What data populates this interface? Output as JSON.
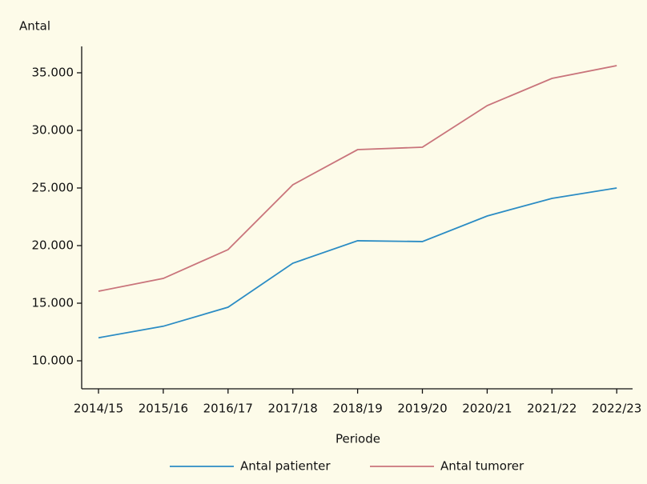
{
  "chart_data": {
    "type": "line",
    "y_label": "Antal",
    "x_label": "Periode",
    "categories": [
      "2014/15",
      "2015/16",
      "2016/17",
      "2017/18",
      "2018/19",
      "2019/20",
      "2020/21",
      "2021/22",
      "2022/23"
    ],
    "series": [
      {
        "name": "Antal patienter",
        "color": "#2b8cc4",
        "values": [
          12000,
          13000,
          14650,
          18470,
          20420,
          20350,
          22570,
          24100,
          25000
        ]
      },
      {
        "name": "Antal tumorer",
        "color": "#c9747b",
        "values": [
          16040,
          17150,
          19650,
          25280,
          28330,
          28540,
          32150,
          34510,
          35620
        ]
      }
    ],
    "ylim": [
      7570,
      37290
    ],
    "yticks": [
      {
        "value": 10000,
        "label": "10.000"
      },
      {
        "value": 15000,
        "label": "15.000"
      },
      {
        "value": 20000,
        "label": "20.000"
      },
      {
        "value": 25000,
        "label": "25.000"
      },
      {
        "value": 30000,
        "label": "30.000"
      },
      {
        "value": 35000,
        "label": "35.000"
      }
    ],
    "grid": false,
    "legend": "bottom"
  }
}
